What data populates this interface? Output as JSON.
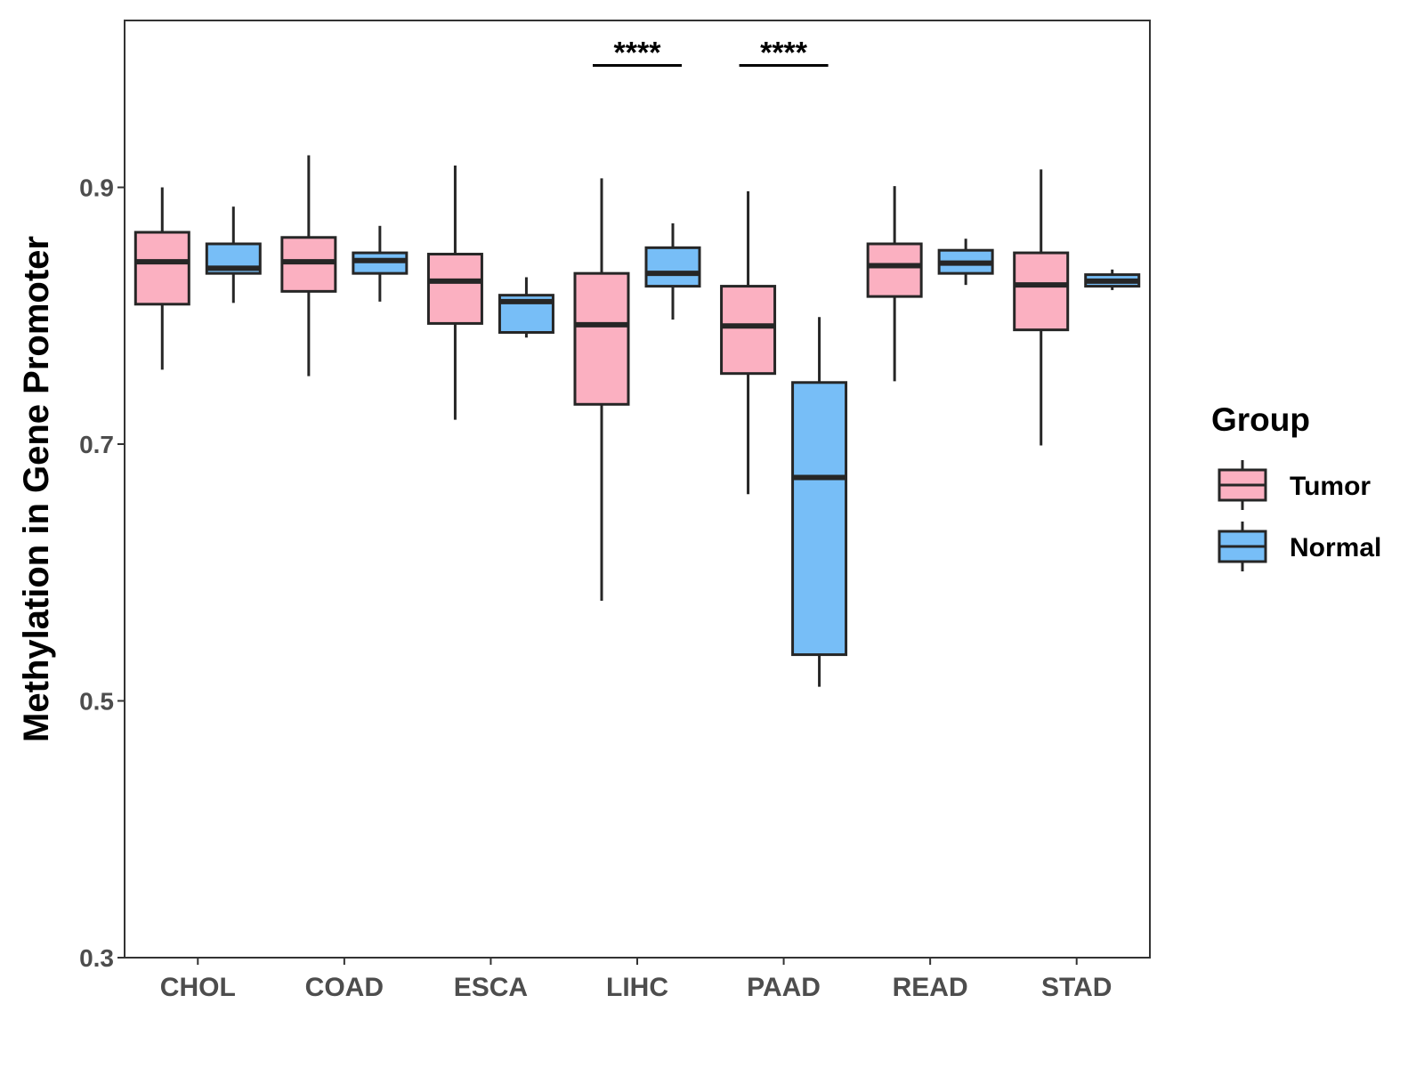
{
  "chart_data": {
    "type": "boxplot",
    "title": "",
    "xlabel": "",
    "ylabel": "Methylation in Gene Promoter",
    "ylim": [
      0.3,
      1.03
    ],
    "yticks": [
      "0.3",
      "0.5",
      "0.7",
      "0.9"
    ],
    "grid": false,
    "legend": {
      "title": "Group",
      "placement": "right"
    },
    "categories": [
      "CHOL",
      "COAD",
      "ESCA",
      "LIHC",
      "PAAD",
      "READ",
      "STAD"
    ],
    "series": [
      {
        "name": "Tumor",
        "color": "#fbb0c1",
        "boxes": [
          {
            "whisker_low": 0.758,
            "q1": 0.809,
            "median": 0.842,
            "q3": 0.865,
            "whisker_high": 0.9
          },
          {
            "whisker_low": 0.753,
            "q1": 0.819,
            "median": 0.842,
            "q3": 0.861,
            "whisker_high": 0.925
          },
          {
            "whisker_low": 0.719,
            "q1": 0.794,
            "median": 0.827,
            "q3": 0.848,
            "whisker_high": 0.917
          },
          {
            "whisker_low": 0.578,
            "q1": 0.731,
            "median": 0.793,
            "q3": 0.833,
            "whisker_high": 0.907
          },
          {
            "whisker_low": 0.661,
            "q1": 0.755,
            "median": 0.792,
            "q3": 0.823,
            "whisker_high": 0.897
          },
          {
            "whisker_low": 0.749,
            "q1": 0.815,
            "median": 0.839,
            "q3": 0.856,
            "whisker_high": 0.901
          },
          {
            "whisker_low": 0.699,
            "q1": 0.789,
            "median": 0.824,
            "q3": 0.849,
            "whisker_high": 0.914
          }
        ]
      },
      {
        "name": "Normal",
        "color": "#77bef7",
        "boxes": [
          {
            "whisker_low": 0.81,
            "q1": 0.833,
            "median": 0.837,
            "q3": 0.856,
            "whisker_high": 0.885
          },
          {
            "whisker_low": 0.811,
            "q1": 0.833,
            "median": 0.843,
            "q3": 0.849,
            "whisker_high": 0.87
          },
          {
            "whisker_low": 0.783,
            "q1": 0.787,
            "median": 0.811,
            "q3": 0.816,
            "whisker_high": 0.83
          },
          {
            "whisker_low": 0.797,
            "q1": 0.823,
            "median": 0.833,
            "q3": 0.853,
            "whisker_high": 0.872
          },
          {
            "whisker_low": 0.511,
            "q1": 0.536,
            "median": 0.674,
            "q3": 0.748,
            "whisker_high": 0.799
          },
          {
            "whisker_low": 0.824,
            "q1": 0.833,
            "median": 0.841,
            "q3": 0.851,
            "whisker_high": 0.86
          },
          {
            "whisker_low": 0.82,
            "q1": 0.823,
            "median": 0.827,
            "q3": 0.832,
            "whisker_high": 0.836
          }
        ]
      }
    ],
    "annotations": [
      {
        "category": "LIHC",
        "label": "****",
        "y": 0.995
      },
      {
        "category": "PAAD",
        "label": "****",
        "y": 0.995
      }
    ]
  }
}
